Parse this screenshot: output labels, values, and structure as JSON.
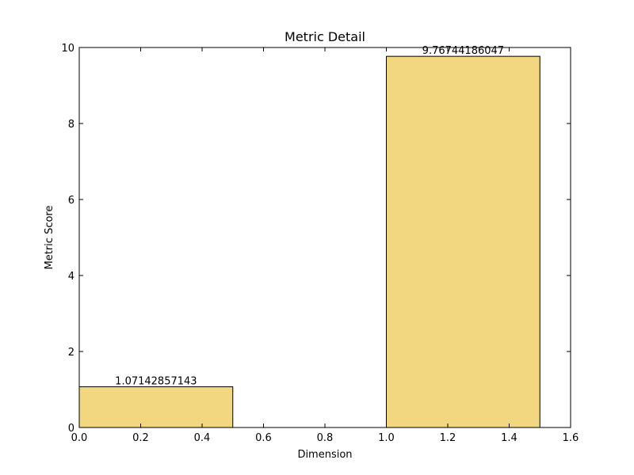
{
  "chart_data": {
    "type": "bar",
    "title": "Metric Detail",
    "xlabel": "Dimension",
    "ylabel": "Metric Score",
    "xlim": [
      0,
      1.6
    ],
    "ylim": [
      0,
      10
    ],
    "xticks": [
      0.0,
      0.2,
      0.4,
      0.6,
      0.8,
      1.0,
      1.2,
      1.4,
      1.6
    ],
    "xtick_labels": [
      "0.0",
      "0.2",
      "0.4",
      "0.6",
      "0.8",
      "1.0",
      "1.2",
      "1.4",
      "1.6"
    ],
    "yticks": [
      0,
      2,
      4,
      6,
      8,
      10
    ],
    "ytick_labels": [
      "0",
      "2",
      "4",
      "6",
      "8",
      "10"
    ],
    "bar_width": 0.5,
    "bars": [
      {
        "x": 0.0,
        "value": 1.07142857143,
        "label": "1.07142857143"
      },
      {
        "x": 1.0,
        "value": 9.76744186047,
        "label": "9.76744186047"
      }
    ],
    "bar_color": "#f2d680",
    "bar_edge_color": "#000000",
    "grid": false
  }
}
